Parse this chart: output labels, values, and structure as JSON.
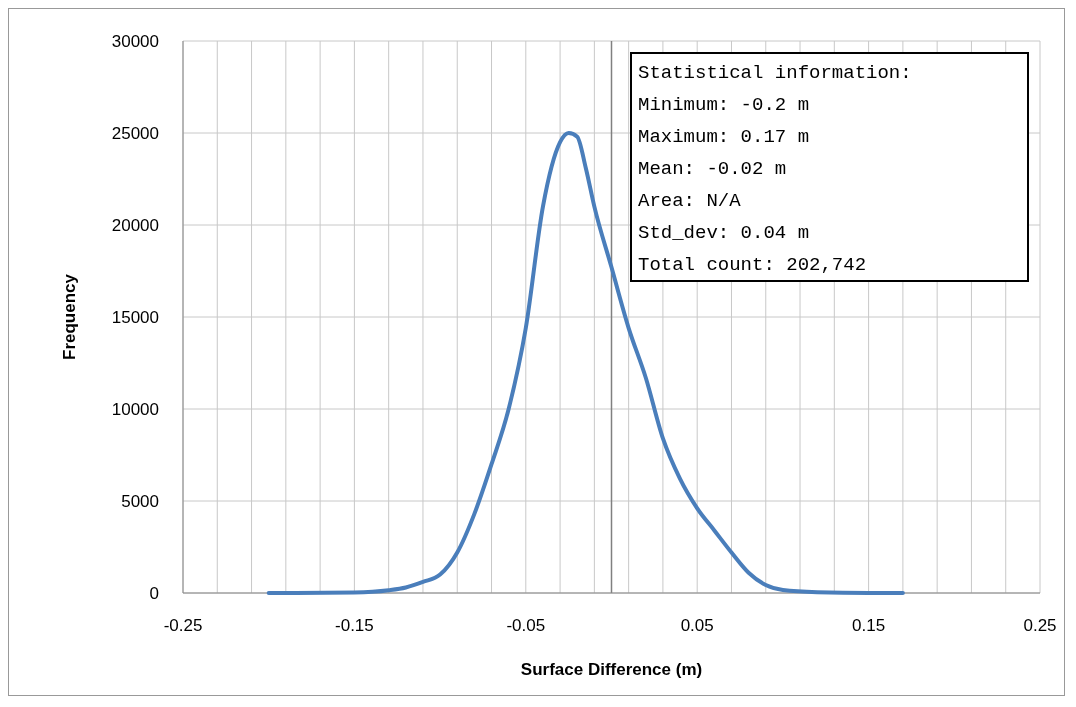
{
  "chart_data": {
    "type": "line",
    "xlabel": "Surface Difference (m)",
    "ylabel": "Frequency",
    "x": [
      -0.2,
      -0.15,
      -0.13,
      -0.12,
      -0.11,
      -0.1,
      -0.09,
      -0.08,
      -0.07,
      -0.06,
      -0.05,
      -0.04,
      -0.03,
      -0.025,
      -0.02,
      -0.015,
      -0.01,
      0,
      0.01,
      0.02,
      0.03,
      0.04,
      0.05,
      0.06,
      0.07,
      0.08,
      0.09,
      0.1,
      0.12,
      0.15,
      0.17
    ],
    "series": [
      {
        "color": "#4a7ebb",
        "values": [
          0,
          30,
          150,
          300,
          600,
          1000,
          2200,
          4300,
          7000,
          10000,
          14400,
          21000,
          24500,
          25000,
          24800,
          23100,
          21000,
          17700,
          14400,
          11700,
          8400,
          6200,
          4600,
          3400,
          2200,
          1100,
          430,
          160,
          40,
          0,
          0
        ]
      }
    ],
    "xlim": [
      -0.25,
      0.25
    ],
    "xticks": [
      -0.25,
      {
        "value": -0.23,
        "label": null
      },
      {
        "value": -0.21,
        "label": null
      },
      {
        "value": -0.19,
        "label": null
      },
      {
        "value": -0.17,
        "label": null
      },
      -0.15,
      {
        "value": -0.13,
        "label": null
      },
      {
        "value": -0.11,
        "label": null
      },
      {
        "value": -0.09,
        "label": null
      },
      {
        "value": -0.07,
        "label": null
      },
      -0.05,
      {
        "value": -0.03,
        "label": null
      },
      {
        "value": -0.01,
        "label": null
      },
      {
        "value": 0.01,
        "label": null
      },
      {
        "value": 0.03,
        "label": null
      },
      0.05,
      {
        "value": 0.07,
        "label": null
      },
      {
        "value": 0.09,
        "label": null
      },
      {
        "value": 0.11,
        "label": null
      },
      {
        "value": 0.13,
        "label": null
      },
      0.15,
      {
        "value": 0.17,
        "label": null
      },
      {
        "value": 0.19,
        "label": null
      },
      {
        "value": 0.21,
        "label": null
      },
      {
        "value": 0.23,
        "label": null
      },
      0.25
    ],
    "ylim": [
      0,
      30000
    ],
    "yticks": [
      0,
      5000,
      10000,
      15000,
      20000,
      25000,
      30000
    ],
    "grid": true,
    "marker": "none",
    "line_style": "solid",
    "ref_lines": [
      {
        "axis": "x",
        "value": 0,
        "color": "#808080"
      }
    ],
    "annotations": [
      "Statistical information:",
      "Minimum: -0.2 m",
      "Maximum: 0.17 m",
      "Mean: -0.02 m",
      "Area: N/A",
      "Std_dev: 0.04 m",
      "Total count: 202,742"
    ]
  }
}
